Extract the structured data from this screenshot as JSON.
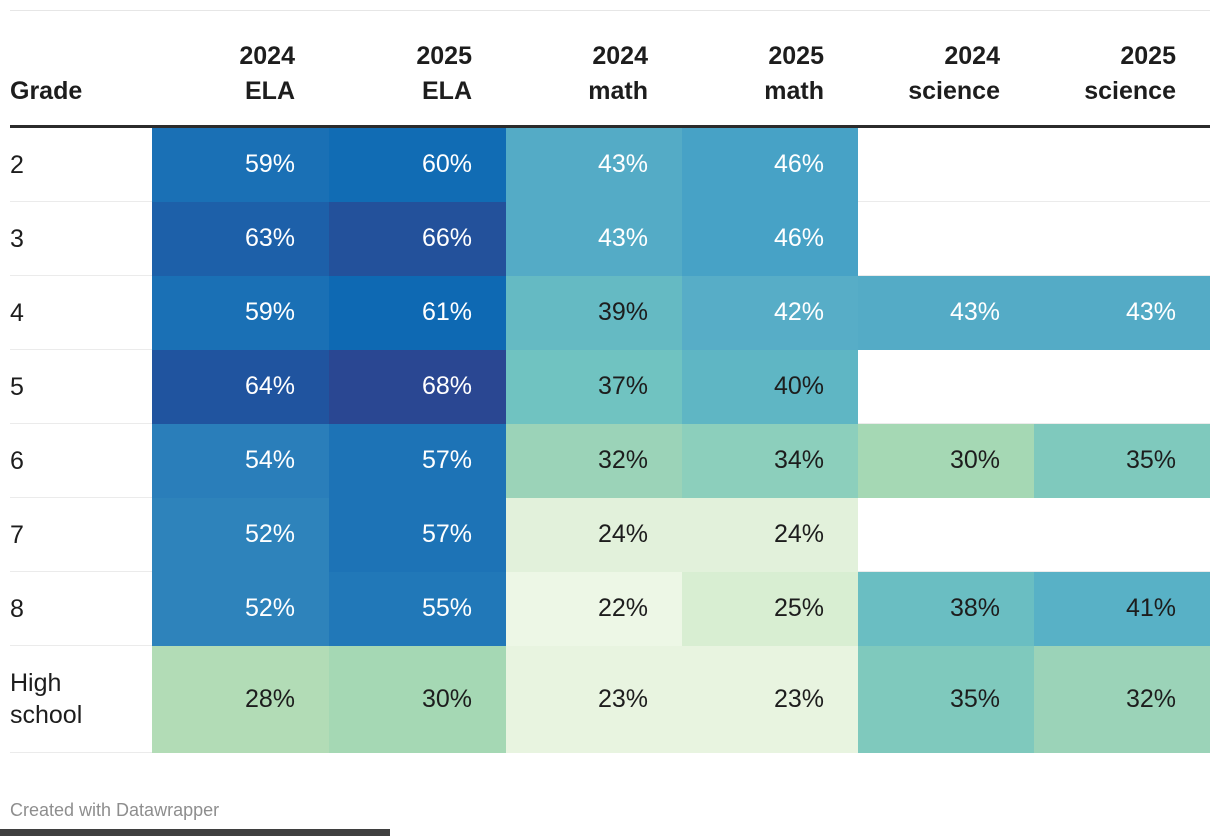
{
  "table": {
    "columns": [
      {
        "id": "grade",
        "lines": [
          "Grade"
        ]
      },
      {
        "id": "ela-2024",
        "lines": [
          "2024",
          "ELA"
        ]
      },
      {
        "id": "ela-2025",
        "lines": [
          "2025",
          "ELA"
        ]
      },
      {
        "id": "math-2024",
        "lines": [
          "2024",
          "math"
        ]
      },
      {
        "id": "math-2025",
        "lines": [
          "2025",
          "math"
        ]
      },
      {
        "id": "science-2024",
        "lines": [
          "2024",
          "science"
        ]
      },
      {
        "id": "science-2025",
        "lines": [
          "2025",
          "science"
        ]
      }
    ],
    "rows": [
      {
        "grade": "2",
        "values": [
          "59%",
          "60%",
          "43%",
          "46%",
          "",
          ""
        ]
      },
      {
        "grade": "3",
        "values": [
          "63%",
          "66%",
          "43%",
          "46%",
          "",
          ""
        ]
      },
      {
        "grade": "4",
        "values": [
          "59%",
          "61%",
          "39%",
          "42%",
          "43%",
          "43%"
        ]
      },
      {
        "grade": "5",
        "values": [
          "64%",
          "68%",
          "37%",
          "40%",
          "",
          ""
        ]
      },
      {
        "grade": "6",
        "values": [
          "54%",
          "57%",
          "32%",
          "34%",
          "30%",
          "35%"
        ]
      },
      {
        "grade": "7",
        "values": [
          "52%",
          "57%",
          "24%",
          "24%",
          "",
          ""
        ]
      },
      {
        "grade": "8",
        "values": [
          "52%",
          "55%",
          "22%",
          "25%",
          "38%",
          "41%"
        ]
      },
      {
        "grade": "High school",
        "values": [
          "28%",
          "30%",
          "23%",
          "23%",
          "35%",
          "32%"
        ]
      }
    ],
    "heatmap": {
      "22%": {
        "bg": "#edf7e6",
        "fg": "#1d1d1d"
      },
      "23%": {
        "bg": "#e8f4e0",
        "fg": "#1d1d1d"
      },
      "24%": {
        "bg": "#e2f1db",
        "fg": "#1d1d1d"
      },
      "25%": {
        "bg": "#d8eed2",
        "fg": "#1d1d1d"
      },
      "28%": {
        "bg": "#b2dcb6",
        "fg": "#1d1d1d"
      },
      "30%": {
        "bg": "#a5d8b4",
        "fg": "#1d1d1d"
      },
      "32%": {
        "bg": "#9bd3b8",
        "fg": "#1d1d1d"
      },
      "34%": {
        "bg": "#8ccfbc",
        "fg": "#1d1d1d"
      },
      "35%": {
        "bg": "#7fc9bd",
        "fg": "#1d1d1d"
      },
      "37%": {
        "bg": "#70c3c1",
        "fg": "#1d1d1d"
      },
      "38%": {
        "bg": "#6abec2",
        "fg": "#1d1d1d"
      },
      "39%": {
        "bg": "#65bac3",
        "fg": "#1d1d1d"
      },
      "40%": {
        "bg": "#5fb6c4",
        "fg": "#1d1d1d"
      },
      "41%": {
        "bg": "#58b1c6",
        "fg": "#1d1d1d"
      },
      "42%": {
        "bg": "#57adc7",
        "fg": "#ffffff"
      },
      "43%": {
        "bg": "#54abc6",
        "fg": "#ffffff"
      },
      "46%": {
        "bg": "#47a2c6",
        "fg": "#ffffff"
      },
      "52%": {
        "bg": "#2e83bb",
        "fg": "#ffffff"
      },
      "54%": {
        "bg": "#2a7eba",
        "fg": "#ffffff"
      },
      "55%": {
        "bg": "#2178b8",
        "fg": "#ffffff"
      },
      "57%": {
        "bg": "#1d73b6",
        "fg": "#ffffff"
      },
      "59%": {
        "bg": "#1a70b5",
        "fg": "#ffffff"
      },
      "60%": {
        "bg": "#116cb4",
        "fg": "#ffffff"
      },
      "61%": {
        "bg": "#0e69b3",
        "fg": "#ffffff"
      },
      "63%": {
        "bg": "#1d60a9",
        "fg": "#ffffff"
      },
      "64%": {
        "bg": "#20549f",
        "fg": "#ffffff"
      },
      "66%": {
        "bg": "#23519b",
        "fg": "#ffffff"
      },
      "68%": {
        "bg": "#2a4792",
        "fg": "#ffffff"
      }
    }
  },
  "chart_data": {
    "type": "table",
    "columns": [
      "Grade",
      "2024 ELA",
      "2025 ELA",
      "2024 math",
      "2025 math",
      "2024 science",
      "2025 science"
    ],
    "rows": [
      [
        "2",
        59,
        60,
        43,
        46,
        null,
        null
      ],
      [
        "3",
        63,
        66,
        43,
        46,
        null,
        null
      ],
      [
        "4",
        59,
        61,
        39,
        42,
        43,
        43
      ],
      [
        "5",
        64,
        68,
        37,
        40,
        null,
        null
      ],
      [
        "6",
        54,
        57,
        32,
        34,
        30,
        35
      ],
      [
        "7",
        52,
        57,
        24,
        24,
        null,
        null
      ],
      [
        "8",
        52,
        55,
        22,
        25,
        38,
        41
      ],
      [
        "High school",
        28,
        30,
        23,
        23,
        35,
        32
      ]
    ],
    "unit": "%",
    "color_scale": {
      "low_value_color": "#edf7e6",
      "high_value_color": "#2a4792"
    }
  },
  "footer": {
    "credit": "Created with Datawrapper"
  },
  "colors": {
    "header_rule": "#2b2b2b",
    "row_rule": "#ebebeb",
    "text_dark": "#1d1d1d",
    "text_light": "#ffffff",
    "credit_text": "#8e8e8e",
    "bottom_bar": "#3f3f3f"
  }
}
